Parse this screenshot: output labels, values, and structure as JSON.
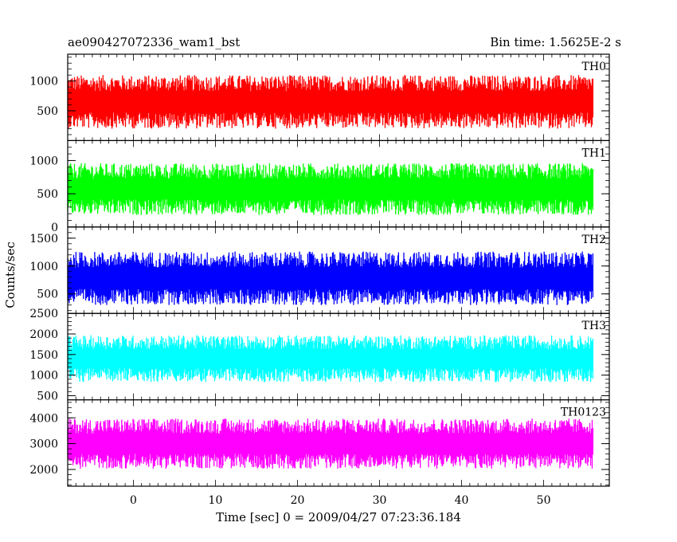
{
  "header": {
    "title": "ae090427072336_wam1_bst",
    "bin_time": "Bin time: 1.5625E-2 s"
  },
  "chart_data": {
    "type": "line",
    "title": "ae090427072336_wam1_bst",
    "subtitle": "Bin time: 1.5625E-2 s",
    "xlabel": "Time [sec] 0 = 2009/04/27 07:23:36.184",
    "ylabel": "Counts/sec",
    "xlim": [
      -8,
      58
    ],
    "x_range_data": [
      -8,
      56
    ],
    "x_ticks": [
      0,
      10,
      20,
      30,
      40,
      50
    ],
    "grid": false,
    "panels": [
      {
        "name": "TH0",
        "color": "#ff0000",
        "ylim": [
          0,
          1450
        ],
        "yticks": [
          500,
          1000
        ],
        "baseline": 650,
        "min": 0,
        "max": 1450,
        "noise": 300
      },
      {
        "name": "TH1",
        "color": "#00ff00",
        "ylim": [
          0,
          1300
        ],
        "yticks": [
          0,
          500,
          1000
        ],
        "baseline": 570,
        "min": 60,
        "max": 1300,
        "noise": 260
      },
      {
        "name": "TH2",
        "color": "#0000ff",
        "ylim": [
          150,
          1700
        ],
        "yticks": [
          500,
          1000,
          1500
        ],
        "baseline": 780,
        "min": 150,
        "max": 1700,
        "noise": 320
      },
      {
        "name": "TH3",
        "color": "#00ffff",
        "ylim": [
          400,
          2500
        ],
        "yticks": [
          500,
          1000,
          1500,
          2000,
          2500
        ],
        "baseline": 1400,
        "min": 400,
        "max": 2500,
        "noise": 380
      },
      {
        "name": "TH0123",
        "color": "#ff00ff",
        "ylim": [
          1350,
          4700
        ],
        "yticks": [
          2000,
          3000,
          4000
        ],
        "baseline": 3000,
        "min": 1350,
        "max": 4700,
        "noise": 650
      }
    ]
  }
}
